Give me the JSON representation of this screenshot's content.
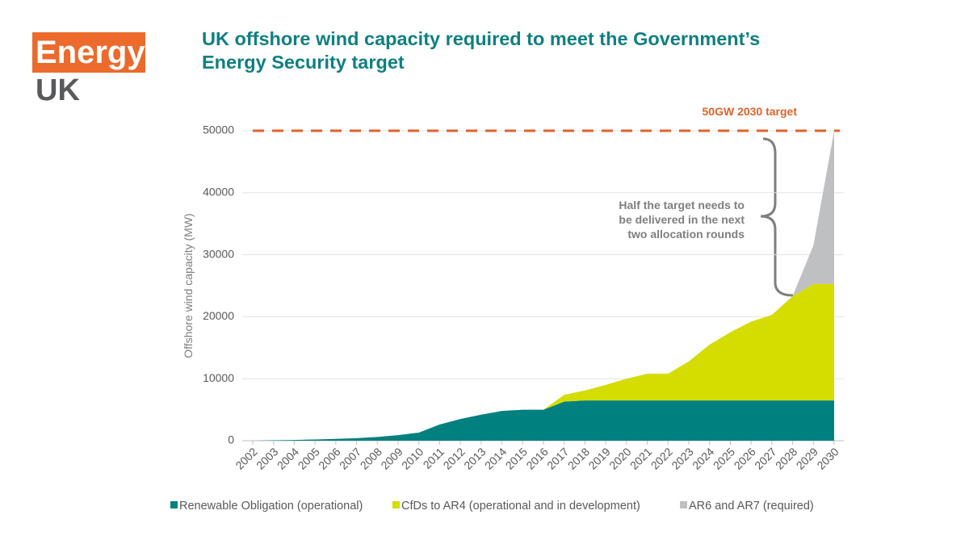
{
  "logo": {
    "top": "Energy",
    "bottom": "UK"
  },
  "chart_data": {
    "type": "area",
    "stacked": true,
    "title": "UK offshore wind capacity required to meet the Government’s Energy Security target",
    "y_label": "Offshore wind capacity (MW)",
    "categories": [
      "2002",
      "2003",
      "2004",
      "2005",
      "2006",
      "2007",
      "2008",
      "2009",
      "2010",
      "2011",
      "2012",
      "2013",
      "2014",
      "2015",
      "2016",
      "2017",
      "2018",
      "2019",
      "2020",
      "2021",
      "2022",
      "2023",
      "2024",
      "2025",
      "2026",
      "2027",
      "2028",
      "2029",
      "2030"
    ],
    "series": [
      {
        "name": "Renewable Obligation (operational)",
        "color": "#00807f",
        "values": [
          0,
          60,
          120,
          200,
          300,
          400,
          600,
          900,
          1300,
          2600,
          3500,
          4200,
          4800,
          5000,
          5000,
          6300,
          6500,
          6500,
          6500,
          6500,
          6500,
          6500,
          6500,
          6500,
          6500,
          6500,
          6500,
          6500,
          6500
        ]
      },
      {
        "name": "CfDs to AR4 (operational and in development)",
        "color": "#d4dc00",
        "values": [
          0,
          0,
          0,
          0,
          0,
          0,
          0,
          0,
          0,
          0,
          0,
          0,
          0,
          0,
          0,
          1100,
          1600,
          2500,
          3500,
          4300,
          4300,
          6300,
          9000,
          11000,
          12700,
          13800,
          16800,
          18800,
          18800
        ]
      },
      {
        "name": "AR6 and AR7 (required)",
        "color": "#bfc0c2",
        "values": [
          0,
          0,
          0,
          0,
          0,
          0,
          0,
          0,
          0,
          0,
          0,
          0,
          0,
          0,
          0,
          0,
          0,
          0,
          0,
          0,
          0,
          0,
          0,
          0,
          0,
          0,
          0,
          6200,
          24700
        ]
      }
    ],
    "ylim": [
      0,
      50000
    ],
    "yticks": [
      0,
      10000,
      20000,
      30000,
      40000,
      50000
    ],
    "grid": true,
    "target": {
      "value": 50000,
      "label": "50GW 2030 target",
      "color": "#e0622a"
    },
    "annotation": [
      "Half the target needs to",
      "be delivered in the next",
      "two allocation rounds"
    ],
    "legend": "bottom"
  }
}
